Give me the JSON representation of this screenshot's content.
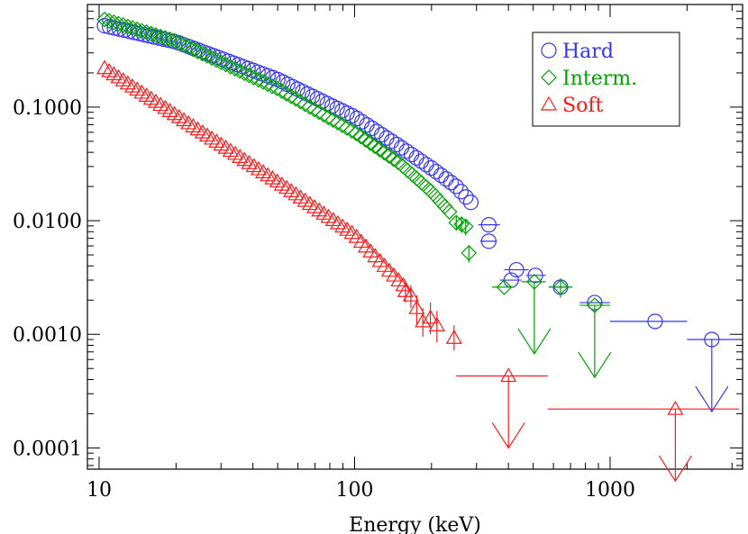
{
  "chart_data": {
    "type": "scatter",
    "title": "",
    "xlabel": "Energy (keV)",
    "ylabel": "",
    "x_scale": "log",
    "y_scale": "log",
    "xlim": [
      9,
      3300
    ],
    "ylim": [
      6.5e-05,
      0.8
    ],
    "x_ticks": [
      {
        "value": 10,
        "label": "10"
      },
      {
        "value": 100,
        "label": "100"
      },
      {
        "value": 1000,
        "label": "1000"
      }
    ],
    "y_ticks": [
      {
        "value": 0.1,
        "label": "0.1000"
      },
      {
        "value": 0.01,
        "label": "0.0100"
      },
      {
        "value": 0.001,
        "label": "0.0010"
      },
      {
        "value": 0.0001,
        "label": "0.0001"
      }
    ],
    "legend": {
      "placement": "top-right",
      "entries": [
        "Hard",
        "Interm.",
        "Soft"
      ]
    },
    "series": [
      {
        "name": "Hard",
        "marker": "circle",
        "color": "#3333ff",
        "smooth": {
          "x_start": 10.5,
          "x_end": 285,
          "n": 75,
          "y_knots": [
            [
              10.5,
              0.52
            ],
            [
              20,
              0.375
            ],
            [
              50,
              0.175
            ],
            [
              100,
              0.082
            ],
            [
              150,
              0.045
            ],
            [
              200,
              0.029
            ],
            [
              250,
              0.02
            ],
            [
              285,
              0.0145
            ]
          ]
        },
        "points": [
          {
            "x": 335,
            "y": 0.0092,
            "xerr": [
              305,
              370
            ]
          },
          {
            "x": 335,
            "y": 0.0066,
            "xerr": [
              310,
              360
            ]
          },
          {
            "x": 430,
            "y": 0.0037,
            "xerr": [
              385,
              480
            ]
          },
          {
            "x": 410,
            "y": 0.003,
            "xerr": [
              370,
              450
            ]
          },
          {
            "x": 510,
            "y": 0.0033,
            "xerr": [
              470,
              560
            ]
          },
          {
            "x": 640,
            "y": 0.0026,
            "xerr": [
              575,
              710
            ]
          },
          {
            "x": 870,
            "y": 0.0019,
            "xerr": [
              760,
              1000
            ]
          },
          {
            "x": 1500,
            "y": 0.0013,
            "xerr": [
              1000,
              2000
            ]
          },
          {
            "x": 2500,
            "y": 0.0009,
            "xerr": [
              2000,
              3200
            ],
            "upper_limit": true
          }
        ]
      },
      {
        "name": "Interm.",
        "marker": "diamond",
        "color": "#00a000",
        "smooth": {
          "x_start": 10.5,
          "x_end": 235,
          "n": 75,
          "y_knots": [
            [
              10.5,
              0.59
            ],
            [
              20,
              0.38
            ],
            [
              50,
              0.145
            ],
            [
              100,
              0.06
            ],
            [
              150,
              0.032
            ],
            [
              200,
              0.018
            ],
            [
              235,
              0.012
            ]
          ]
        },
        "points": [
          {
            "x": 250,
            "y": 0.0096,
            "yerr": [
              0.0082,
              0.011
            ]
          },
          {
            "x": 262,
            "y": 0.0093,
            "yerr": [
              0.0078,
              0.0108
            ]
          },
          {
            "x": 272,
            "y": 0.0089,
            "yerr": [
              0.0074,
              0.0104
            ]
          },
          {
            "x": 280,
            "y": 0.0052,
            "yerr": [
              0.0043,
              0.0061
            ]
          },
          {
            "x": 385,
            "y": 0.0026,
            "xerr": [
              345,
              420
            ]
          },
          {
            "x": 505,
            "y": 0.0029,
            "xerr": [
              450,
              560
            ],
            "upper_limit": true
          },
          {
            "x": 640,
            "y": 0.0026,
            "xerr": [
              575,
              710
            ],
            "yerr": [
              0.0021,
              0.0031
            ]
          },
          {
            "x": 870,
            "y": 0.0018,
            "xerr": [
              760,
              1000
            ],
            "upper_limit": true
          }
        ]
      },
      {
        "name": "Soft",
        "marker": "triangle",
        "color": "#ff1a1a",
        "smooth": {
          "x_start": 10.5,
          "x_end": 155,
          "n": 65,
          "y_knots": [
            [
              10.5,
              0.22
            ],
            [
              20,
              0.085
            ],
            [
              50,
              0.022
            ],
            [
              100,
              0.0075
            ],
            [
              155,
              0.0027
            ]
          ]
        },
        "points": [
          {
            "x": 158,
            "y": 0.0024,
            "yerr": [
              0.0019,
              0.0029
            ]
          },
          {
            "x": 166,
            "y": 0.0022,
            "yerr": [
              0.0017,
              0.0027
            ]
          },
          {
            "x": 175,
            "y": 0.0017,
            "yerr": [
              0.0012,
              0.0022
            ]
          },
          {
            "x": 185,
            "y": 0.0013,
            "yerr": [
              0.00095,
              0.0017
            ]
          },
          {
            "x": 198,
            "y": 0.0014,
            "yerr": [
              0.001,
              0.0019
            ]
          },
          {
            "x": 210,
            "y": 0.0012,
            "yerr": [
              0.00085,
              0.0016
            ]
          },
          {
            "x": 245,
            "y": 0.00093,
            "yerr": [
              0.00072,
              0.0012
            ]
          },
          {
            "x": 400,
            "y": 0.00043,
            "xerr": [
              250,
              570
            ],
            "upper_limit": true
          },
          {
            "x": 1800,
            "y": 0.00022,
            "xerr": [
              570,
              3200
            ],
            "upper_limit": true
          }
        ]
      }
    ]
  }
}
